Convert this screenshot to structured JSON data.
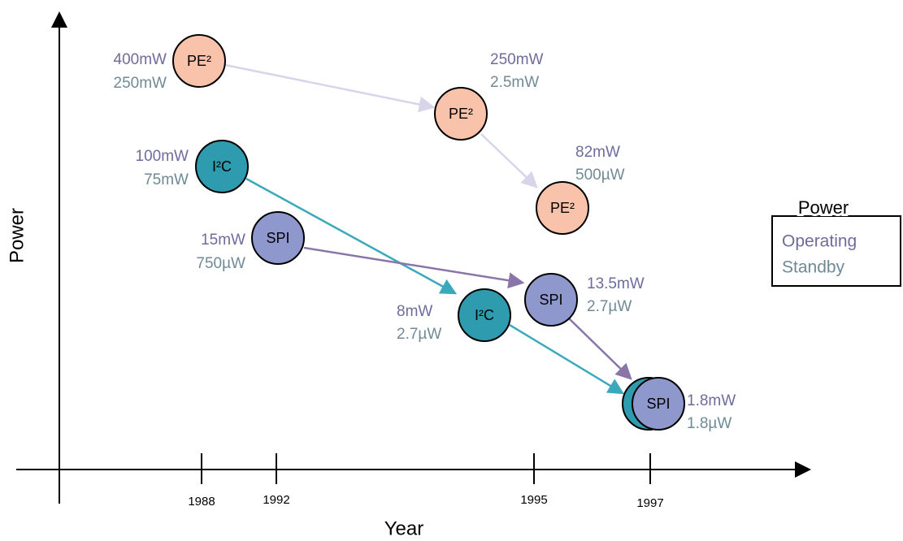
{
  "axes": {
    "y_label": "Power",
    "x_label": "Year",
    "ticks": [
      "1988",
      "1992",
      "1995",
      "1997"
    ]
  },
  "nodes": [
    {
      "label": "PE²",
      "operating": "400mW",
      "standby": "250mW"
    },
    {
      "label": "PE²",
      "operating": "250mW",
      "standby": "2.5mW"
    },
    {
      "label": "PE²",
      "operating": "82mW",
      "standby": "500µW"
    },
    {
      "label": "I²C",
      "operating": "100mW",
      "standby": "75mW"
    },
    {
      "label": "SPI",
      "operating": "15mW",
      "standby": "750µW"
    },
    {
      "label": "SPI",
      "operating": "13.5mW",
      "standby": "2.7µW"
    },
    {
      "label": "I²C",
      "operating": "8mW",
      "standby": "2.7µW"
    },
    {
      "label": "SPI",
      "operating": "1.8mW",
      "standby": "1.8µW"
    }
  ],
  "legend": {
    "title": "Power",
    "items": [
      "Operating",
      "Standby"
    ]
  }
}
